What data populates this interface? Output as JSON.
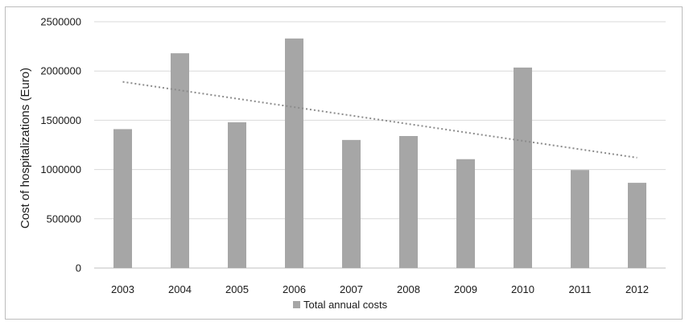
{
  "chart_data": {
    "type": "bar",
    "title": "",
    "xlabel": "",
    "ylabel": "Cost of hospitalizations (Euro)",
    "categories": [
      "2003",
      "2004",
      "2005",
      "2006",
      "2007",
      "2008",
      "2009",
      "2010",
      "2011",
      "2012"
    ],
    "series": [
      {
        "name": "Total annual costs",
        "values": [
          1410000,
          2180000,
          1480000,
          2330000,
          1300000,
          1340000,
          1105000,
          2035000,
          995000,
          865000
        ]
      }
    ],
    "trendline": {
      "type": "linear",
      "start": 1890000,
      "end": 1120000,
      "style": "dotted"
    },
    "ylim": [
      0,
      2500000
    ],
    "yticks": [
      "0",
      "500000",
      "1000000",
      "1500000",
      "2000000",
      "2500000"
    ],
    "grid": true,
    "legend": "bottom-center",
    "colors": {
      "bar": "#a6a6a6",
      "grid": "#d9d9d9",
      "trendline": "#8c8c8c",
      "axis": "#bfbfbf"
    }
  }
}
